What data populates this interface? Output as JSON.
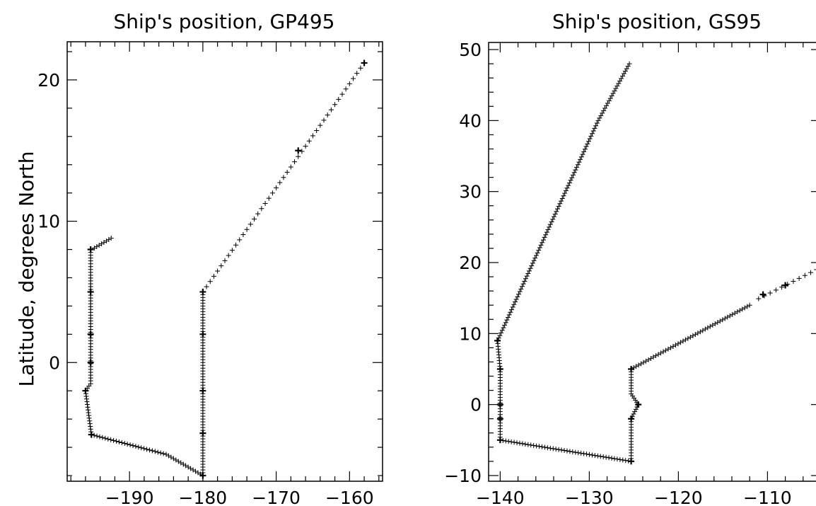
{
  "chart_data": [
    {
      "type": "scatter",
      "title": "Ship's position, GP495",
      "xlabel": "",
      "ylabel": "Latitude, degrees North",
      "xlim": [
        -198.5,
        -155.5
      ],
      "ylim": [
        -8.4,
        22.7
      ],
      "x_ticks": [
        -190,
        -180,
        -170,
        -160
      ],
      "y_ticks": [
        0,
        10,
        20
      ],
      "marker": "+",
      "grid": false,
      "segments": [
        {
          "dense": true,
          "points": [
            [
              -196,
              -2
            ],
            [
              -195.3,
              -1.5
            ],
            [
              -195.3,
              8
            ],
            [
              -194.8,
              8.1
            ],
            [
              -192.5,
              8.8
            ]
          ]
        },
        {
          "dense": true,
          "points": [
            [
              -196,
              -2
            ],
            [
              -195.2,
              -5.1
            ],
            [
              -185,
              -6.5
            ],
            [
              -180,
              -8
            ]
          ]
        },
        {
          "dense": true,
          "points": [
            [
              -180,
              -8
            ],
            [
              -180,
              5
            ]
          ]
        },
        {
          "dense": false,
          "points": [
            [
              -180,
              5
            ],
            [
              -158,
              21.2
            ]
          ]
        }
      ],
      "emphasis_points": [
        [
          -195.3,
          8
        ],
        [
          -195.3,
          5
        ],
        [
          -195.3,
          2
        ],
        [
          -195.3,
          0
        ],
        [
          -196,
          -2
        ],
        [
          -195.2,
          -5.1
        ],
        [
          -180,
          5
        ],
        [
          -180,
          2
        ],
        [
          -180,
          -2
        ],
        [
          -180,
          -5
        ],
        [
          -180,
          -8
        ],
        [
          -158,
          21.2
        ],
        [
          -167,
          15
        ]
      ]
    },
    {
      "type": "scatter",
      "title": "Ship's position, GS95",
      "xlabel": "",
      "ylabel": "",
      "xlim": [
        -141.3,
        -104
      ],
      "ylim": [
        -10.8,
        51
      ],
      "x_ticks": [
        -140,
        -130,
        -120,
        -110
      ],
      "y_ticks": [
        -10,
        0,
        10,
        20,
        30,
        40,
        50
      ],
      "marker": "+",
      "grid": false,
      "segments": [
        {
          "dense": true,
          "points": [
            [
              -140.3,
              9
            ],
            [
              -140,
              5
            ],
            [
              -140,
              -5
            ]
          ]
        },
        {
          "dense": true,
          "points": [
            [
              -140,
              -5
            ],
            [
              -125.3,
              -8
            ],
            [
              -125.3,
              -2
            ],
            [
              -124.5,
              0
            ],
            [
              -125.3,
              1.5
            ],
            [
              -125.3,
              5
            ]
          ]
        },
        {
          "dense": true,
          "points": [
            [
              -140.3,
              9
            ],
            [
              -134.5,
              25
            ],
            [
              -129,
              40
            ],
            [
              -125.5,
              48
            ]
          ]
        },
        {
          "dense": true,
          "points": [
            [
              -125.3,
              5
            ],
            [
              -112,
              14
            ]
          ]
        },
        {
          "dense": false,
          "points": [
            [
              -111,
              14.9
            ],
            [
              -104.5,
              19
            ]
          ]
        }
      ],
      "emphasis_points": [
        [
          -140,
          5
        ],
        [
          -140,
          0
        ],
        [
          -140,
          -2
        ],
        [
          -140,
          -5
        ],
        [
          -125.3,
          -8
        ],
        [
          -125.3,
          -2
        ],
        [
          -124.5,
          0
        ],
        [
          -125.3,
          5
        ],
        [
          -140.3,
          9
        ],
        [
          -110.5,
          15.5
        ],
        [
          -108,
          16.8
        ]
      ]
    }
  ]
}
